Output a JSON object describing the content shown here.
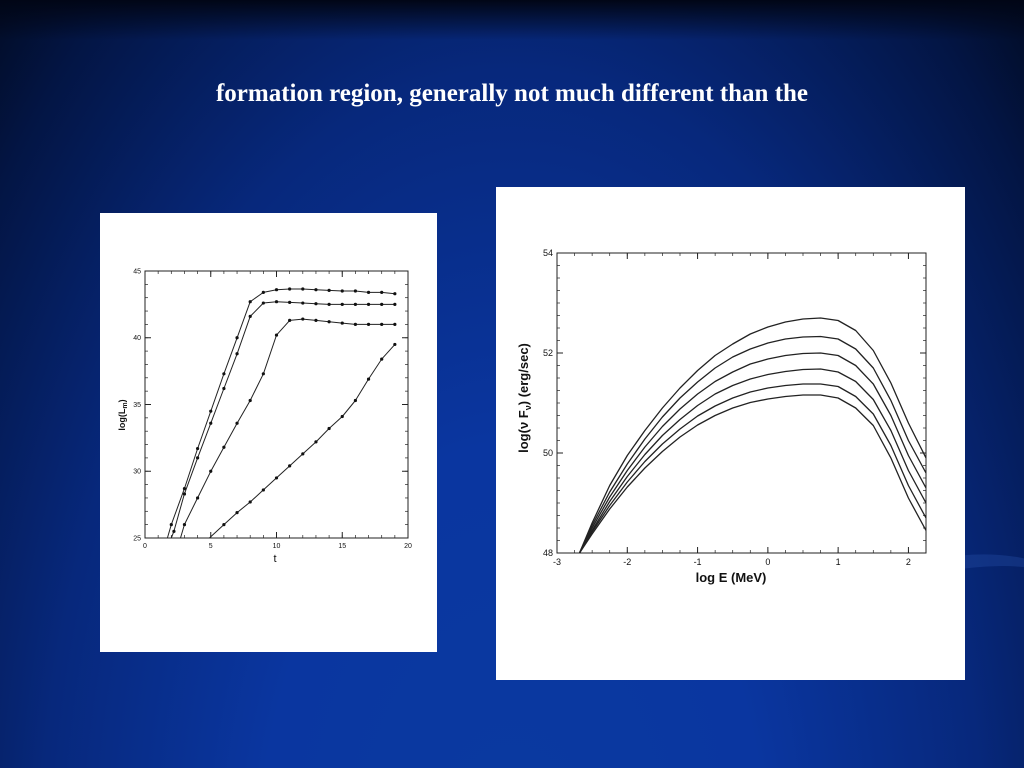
{
  "slide": {
    "title": "formation region, generally not much different than the"
  },
  "chart_data": [
    {
      "type": "line",
      "xlabel": "t",
      "ylabel_main": "log(L",
      "ylabel_sub": "m",
      "ylabel_close": ")",
      "xlim": [
        0,
        20
      ],
      "ylim": [
        25,
        45
      ],
      "xticks": [
        0,
        5,
        10,
        15,
        20
      ],
      "yticks": [
        25,
        30,
        35,
        40,
        45
      ],
      "markers": true,
      "series": [
        {
          "values": [
            [
              1.7,
              25
            ],
            [
              2,
              26
            ],
            [
              3,
              28.7
            ],
            [
              4,
              31.7
            ],
            [
              5,
              34.5
            ],
            [
              6,
              37.3
            ],
            [
              7,
              40
            ],
            [
              8,
              42.7
            ],
            [
              9,
              43.4
            ],
            [
              10,
              43.6
            ],
            [
              11,
              43.65
            ],
            [
              12,
              43.65
            ],
            [
              13,
              43.6
            ],
            [
              14,
              43.55
            ],
            [
              15,
              43.5
            ],
            [
              16,
              43.5
            ],
            [
              17,
              43.4
            ],
            [
              18,
              43.4
            ],
            [
              19,
              43.3
            ]
          ]
        },
        {
          "values": [
            [
              2,
              25
            ],
            [
              2.2,
              25.5
            ],
            [
              3,
              28.3
            ],
            [
              4,
              31
            ],
            [
              5,
              33.6
            ],
            [
              6,
              36.2
            ],
            [
              7,
              38.8
            ],
            [
              8,
              41.6
            ],
            [
              9,
              42.6
            ],
            [
              10,
              42.7
            ],
            [
              11,
              42.65
            ],
            [
              12,
              42.6
            ],
            [
              13,
              42.55
            ],
            [
              14,
              42.5
            ],
            [
              15,
              42.5
            ],
            [
              16,
              42.5
            ],
            [
              17,
              42.5
            ],
            [
              18,
              42.5
            ],
            [
              19,
              42.5
            ]
          ]
        },
        {
          "values": [
            [
              2.7,
              25
            ],
            [
              3,
              26
            ],
            [
              4,
              28
            ],
            [
              5,
              30
            ],
            [
              6,
              31.8
            ],
            [
              7,
              33.6
            ],
            [
              8,
              35.3
            ],
            [
              9,
              37.3
            ],
            [
              10,
              40.2
            ],
            [
              11,
              41.3
            ],
            [
              12,
              41.4
            ],
            [
              13,
              41.3
            ],
            [
              14,
              41.2
            ],
            [
              15,
              41.1
            ],
            [
              16,
              41
            ],
            [
              17,
              41
            ],
            [
              18,
              41
            ],
            [
              19,
              41
            ]
          ]
        },
        {
          "values": [
            [
              4.9,
              25
            ],
            [
              6,
              26
            ],
            [
              7,
              26.9
            ],
            [
              8,
              27.7
            ],
            [
              9,
              28.6
            ],
            [
              10,
              29.5
            ],
            [
              11,
              30.4
            ],
            [
              12,
              31.3
            ],
            [
              13,
              32.2
            ],
            [
              14,
              33.2
            ],
            [
              15,
              34.1
            ],
            [
              16,
              35.3
            ],
            [
              17,
              36.9
            ],
            [
              18,
              38.4
            ],
            [
              19,
              39.5
            ]
          ]
        }
      ]
    },
    {
      "type": "line",
      "xlabel": "log E (MeV)",
      "ylabel": "log(ν F",
      "ylabel_sub": "ν",
      "ylabel_close": ") (erg/sec)",
      "xlim": [
        -3,
        2.25
      ],
      "ylim": [
        48,
        54
      ],
      "xticks": [
        -3,
        -2,
        -1,
        0,
        1,
        2
      ],
      "yticks": [
        48,
        50,
        52,
        54
      ],
      "series": [
        {
          "values": [
            [
              -2.68,
              48
            ],
            [
              -2.5,
              48.6
            ],
            [
              -2.25,
              49.35
            ],
            [
              -2,
              49.95
            ],
            [
              -1.75,
              50.45
            ],
            [
              -1.5,
              50.9
            ],
            [
              -1.25,
              51.3
            ],
            [
              -1,
              51.65
            ],
            [
              -0.75,
              51.95
            ],
            [
              -0.5,
              52.18
            ],
            [
              -0.25,
              52.38
            ],
            [
              0,
              52.52
            ],
            [
              0.25,
              52.62
            ],
            [
              0.5,
              52.68
            ],
            [
              0.75,
              52.7
            ],
            [
              1,
              52.65
            ],
            [
              1.25,
              52.45
            ],
            [
              1.5,
              52.05
            ],
            [
              1.75,
              51.4
            ],
            [
              2,
              50.6
            ],
            [
              2.25,
              49.9
            ]
          ]
        },
        {
          "values": [
            [
              -2.68,
              48
            ],
            [
              -2.5,
              48.55
            ],
            [
              -2.25,
              49.22
            ],
            [
              -2,
              49.78
            ],
            [
              -1.75,
              50.28
            ],
            [
              -1.5,
              50.72
            ],
            [
              -1.25,
              51.1
            ],
            [
              -1,
              51.42
            ],
            [
              -0.75,
              51.7
            ],
            [
              -0.5,
              51.92
            ],
            [
              -0.25,
              52.08
            ],
            [
              0,
              52.2
            ],
            [
              0.25,
              52.28
            ],
            [
              0.5,
              52.32
            ],
            [
              0.75,
              52.33
            ],
            [
              1,
              52.28
            ],
            [
              1.25,
              52.08
            ],
            [
              1.5,
              51.7
            ],
            [
              1.75,
              51.05
            ],
            [
              2,
              50.25
            ],
            [
              2.25,
              49.6
            ]
          ]
        },
        {
          "values": [
            [
              -2.68,
              48
            ],
            [
              -2.5,
              48.5
            ],
            [
              -2.25,
              49.12
            ],
            [
              -2,
              49.65
            ],
            [
              -1.75,
              50.12
            ],
            [
              -1.5,
              50.53
            ],
            [
              -1.25,
              50.88
            ],
            [
              -1,
              51.18
            ],
            [
              -0.75,
              51.43
            ],
            [
              -0.5,
              51.62
            ],
            [
              -0.25,
              51.78
            ],
            [
              0,
              51.88
            ],
            [
              0.25,
              51.95
            ],
            [
              0.5,
              51.99
            ],
            [
              0.75,
              52
            ],
            [
              1,
              51.95
            ],
            [
              1.25,
              51.75
            ],
            [
              1.5,
              51.38
            ],
            [
              1.75,
              50.75
            ],
            [
              2,
              49.95
            ],
            [
              2.25,
              49.3
            ]
          ]
        },
        {
          "values": [
            [
              -2.68,
              48
            ],
            [
              -2.5,
              48.45
            ],
            [
              -2.25,
              49.03
            ],
            [
              -2,
              49.53
            ],
            [
              -1.75,
              49.97
            ],
            [
              -1.5,
              50.35
            ],
            [
              -1.25,
              50.67
            ],
            [
              -1,
              50.95
            ],
            [
              -0.75,
              51.18
            ],
            [
              -0.5,
              51.35
            ],
            [
              -0.25,
              51.48
            ],
            [
              0,
              51.57
            ],
            [
              0.25,
              51.63
            ],
            [
              0.5,
              51.67
            ],
            [
              0.75,
              51.68
            ],
            [
              1,
              51.62
            ],
            [
              1.25,
              51.43
            ],
            [
              1.5,
              51.07
            ],
            [
              1.75,
              50.45
            ],
            [
              2,
              49.65
            ],
            [
              2.25,
              49
            ]
          ]
        },
        {
          "values": [
            [
              -2.68,
              48
            ],
            [
              -2.5,
              48.42
            ],
            [
              -2.25,
              48.95
            ],
            [
              -2,
              49.42
            ],
            [
              -1.75,
              49.83
            ],
            [
              -1.5,
              50.18
            ],
            [
              -1.25,
              50.48
            ],
            [
              -1,
              50.74
            ],
            [
              -0.75,
              50.94
            ],
            [
              -0.5,
              51.1
            ],
            [
              -0.25,
              51.22
            ],
            [
              0,
              51.3
            ],
            [
              0.25,
              51.35
            ],
            [
              0.5,
              51.38
            ],
            [
              0.75,
              51.38
            ],
            [
              1,
              51.33
            ],
            [
              1.25,
              51.13
            ],
            [
              1.5,
              50.78
            ],
            [
              1.75,
              50.15
            ],
            [
              2,
              49.35
            ],
            [
              2.25,
              48.7
            ]
          ]
        },
        {
          "values": [
            [
              -2.68,
              48
            ],
            [
              -2.5,
              48.38
            ],
            [
              -2.25,
              48.88
            ],
            [
              -2,
              49.32
            ],
            [
              -1.75,
              49.7
            ],
            [
              -1.5,
              50.03
            ],
            [
              -1.25,
              50.32
            ],
            [
              -1,
              50.56
            ],
            [
              -0.75,
              50.75
            ],
            [
              -0.5,
              50.9
            ],
            [
              -0.25,
              51.01
            ],
            [
              0,
              51.08
            ],
            [
              0.25,
              51.13
            ],
            [
              0.5,
              51.16
            ],
            [
              0.75,
              51.16
            ],
            [
              1,
              51.1
            ],
            [
              1.25,
              50.9
            ],
            [
              1.5,
              50.55
            ],
            [
              1.75,
              49.9
            ],
            [
              2,
              49.1
            ],
            [
              2.25,
              48.45
            ]
          ]
        }
      ]
    }
  ]
}
